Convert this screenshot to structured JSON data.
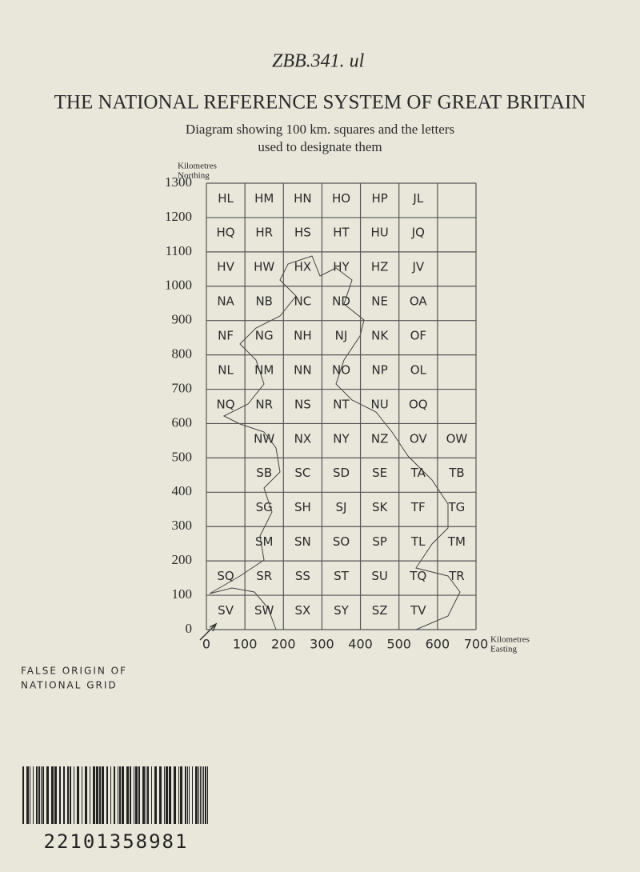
{
  "handwritten": "ZBB.341. ul",
  "title": "THE NATIONAL REFERENCE SYSTEM OF GREAT BRITAIN",
  "subtitle": [
    "Diagram showing 100 km. squares and the letters",
    "used to designate them"
  ],
  "northing_label": [
    "Kilometres",
    "Northing"
  ],
  "easting_label": [
    "Kilometres",
    "Easting"
  ],
  "northing_ticks": [
    1300,
    1200,
    1100,
    1000,
    900,
    800,
    700,
    600,
    500,
    400,
    300,
    200,
    100,
    0
  ],
  "easting_ticks": [
    0,
    100,
    200,
    300,
    400,
    500,
    600,
    700
  ],
  "grid": [
    [
      "HL",
      "HM",
      "HN",
      "HO",
      "HP",
      "JL",
      null
    ],
    [
      "HQ",
      "HR",
      "HS",
      "HT",
      "HU",
      "JQ",
      null
    ],
    [
      "HV",
      "HW",
      "HX",
      "HY",
      "HZ",
      "JV",
      null
    ],
    [
      "NA",
      "NB",
      "NC",
      "ND",
      "NE",
      "OA",
      null
    ],
    [
      "NF",
      "NG",
      "NH",
      "NJ",
      "NK",
      "OF",
      null
    ],
    [
      "NL",
      "NM",
      "NN",
      "NO",
      "NP",
      "OL",
      null
    ],
    [
      "NQ",
      "NR",
      "NS",
      "NT",
      "NU",
      "OQ",
      null
    ],
    [
      null,
      "NW",
      "NX",
      "NY",
      "NZ",
      "OV",
      "OW"
    ],
    [
      null,
      "SB",
      "SC",
      "SD",
      "SE",
      "TA",
      "TB"
    ],
    [
      null,
      "SG",
      "SH",
      "SJ",
      "SK",
      "TF",
      "TG"
    ],
    [
      null,
      "SM",
      "SN",
      "SO",
      "SP",
      "TL",
      "TM"
    ],
    [
      "SQ",
      "SR",
      "SS",
      "ST",
      "SU",
      "TQ",
      "TR"
    ],
    [
      "SV",
      "SW",
      "SX",
      "SY",
      "SZ",
      "TV",
      null
    ]
  ],
  "false_origin": [
    "FALSE ORIGIN OF",
    "NATIONAL GRID"
  ],
  "barcode_number": "22101358981"
}
